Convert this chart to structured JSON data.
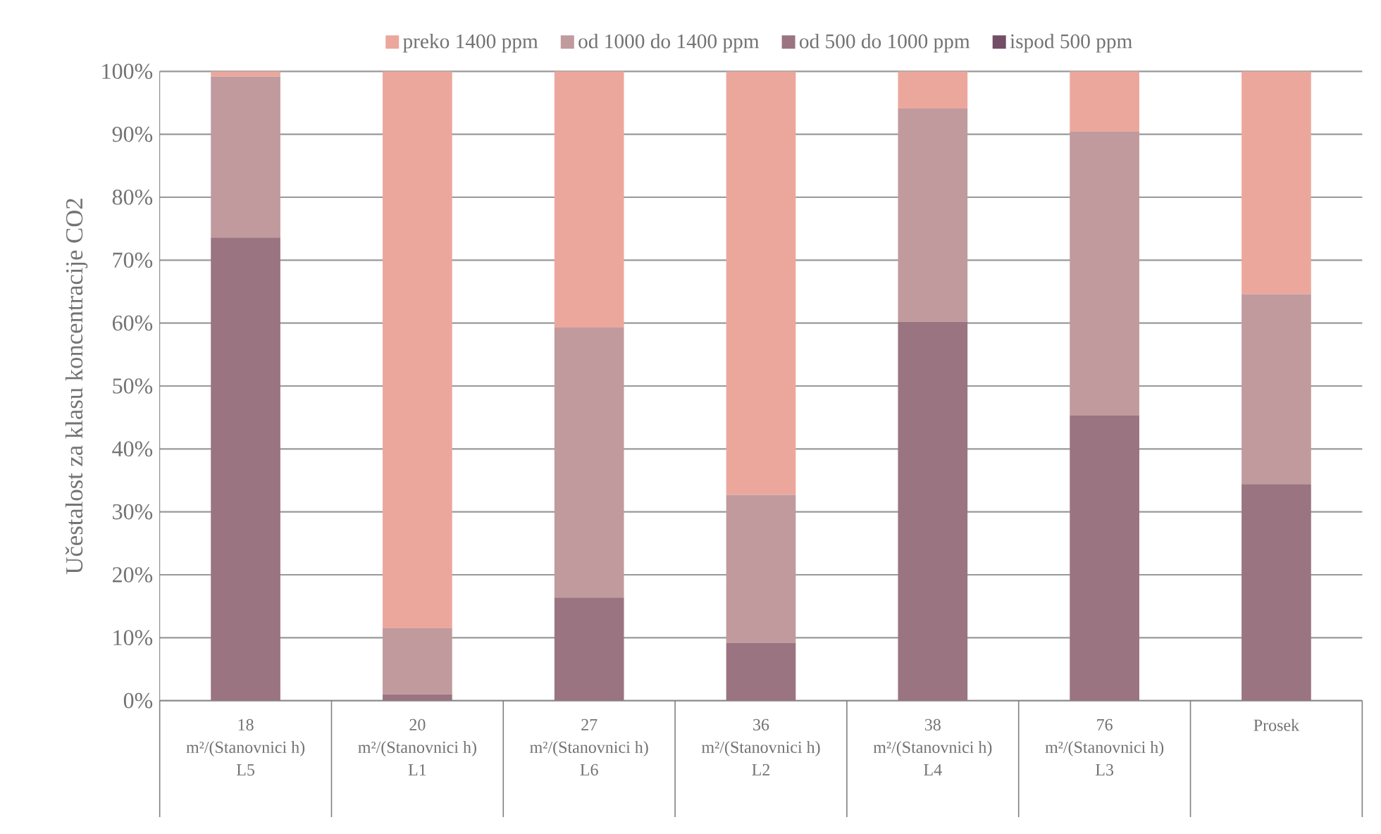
{
  "chart_data": {
    "type": "bar",
    "stacked": true,
    "ylabel": "Učestalost za klasu koncentracije CO2",
    "categories": [
      "18\nm²/(Stanovnici h)\nL5",
      "20\nm²/(Stanovnici h)\nL1",
      "27\nm²/(Stanovnici h)\nL6",
      "36\nm²/(Stanovnici h)\nL2",
      "38\nm²/(Stanovnici h)\nL4",
      "76\nm²/(Stanovnici h)\nL3",
      "Prosek"
    ],
    "series": [
      {
        "name": "ispod 500 ppm",
        "color": "#734e67",
        "values": [
          0,
          0,
          0,
          0,
          0,
          0,
          0
        ]
      },
      {
        "name": "od 500 do 1000 ppm",
        "color": "#9a7480",
        "values": [
          73.6,
          1.0,
          16.4,
          9.2,
          60.2,
          45.3,
          34.4
        ]
      },
      {
        "name": "od 1000 do 1400 ppm",
        "color": "#c09a9d",
        "values": [
          25.6,
          10.5,
          42.9,
          23.5,
          33.9,
          45.1,
          30.2
        ]
      },
      {
        "name": "preko 1400 ppm",
        "color": "#eca79d",
        "values": [
          0.8,
          88.5,
          40.7,
          67.3,
          5.9,
          9.6,
          35.4
        ]
      }
    ],
    "ylim": [
      0,
      100
    ],
    "yticks": [
      {
        "value": 0,
        "label": "0%"
      },
      {
        "value": 10,
        "label": "10%"
      },
      {
        "value": 20,
        "label": "20%"
      },
      {
        "value": 30,
        "label": "30%"
      },
      {
        "value": 40,
        "label": "40%"
      },
      {
        "value": 50,
        "label": "50%"
      },
      {
        "value": 60,
        "label": "60%"
      },
      {
        "value": 70,
        "label": "70%"
      },
      {
        "value": 80,
        "label": "80%"
      },
      {
        "value": 90,
        "label": "90%"
      },
      {
        "value": 100,
        "label": "100%"
      }
    ],
    "grid": "y",
    "legend": "top"
  }
}
